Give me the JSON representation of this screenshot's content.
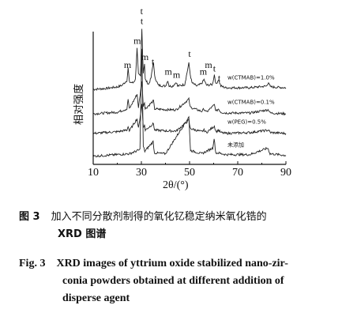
{
  "chart_data": {
    "type": "line",
    "xlabel": "2θ/(°)",
    "ylabel": "相对强度",
    "xlim": [
      10,
      90
    ],
    "xticks": [
      10,
      30,
      50,
      70,
      90
    ],
    "grid": false,
    "series": [
      {
        "name": "w(CTMAB)=1.0%",
        "baseline": 4.6,
        "points": [
          [
            10,
            0
          ],
          [
            15,
            0.05
          ],
          [
            20,
            0.15
          ],
          [
            22,
            0.25
          ],
          [
            24,
            0.55
          ],
          [
            24.5,
            1.3
          ],
          [
            25,
            0.45
          ],
          [
            26.5,
            0.4
          ],
          [
            27.5,
            0.6
          ],
          [
            28.2,
            2.5
          ],
          [
            28.8,
            0.9
          ],
          [
            29.6,
            0.8
          ],
          [
            30.2,
            3.7
          ],
          [
            30.8,
            1.0
          ],
          [
            31.3,
            1.6
          ],
          [
            31.6,
            0.6
          ],
          [
            33,
            0.3
          ],
          [
            34,
            0.7
          ],
          [
            35,
            1.7
          ],
          [
            35.5,
            0.8
          ],
          [
            37,
            0.25
          ],
          [
            40,
            0.2
          ],
          [
            41,
            0.55
          ],
          [
            41.5,
            0.2
          ],
          [
            43,
            0.2
          ],
          [
            44.5,
            0.45
          ],
          [
            45,
            0.2
          ],
          [
            48,
            0.3
          ],
          [
            49.7,
            1.6
          ],
          [
            50.3,
            0.9
          ],
          [
            51,
            0.4
          ],
          [
            53,
            0.2
          ],
          [
            55,
            0.35
          ],
          [
            56,
            0.6
          ],
          [
            57,
            0.25
          ],
          [
            59.5,
            0.3
          ],
          [
            60.3,
            0.9
          ],
          [
            61,
            0.3
          ],
          [
            62,
            0.6
          ],
          [
            63,
            0.2
          ],
          [
            65,
            0.1
          ],
          [
            70,
            0.1
          ],
          [
            75,
            0.1
          ],
          [
            82,
            0.2
          ],
          [
            82.8,
            0.45
          ],
          [
            83.5,
            0.15
          ],
          [
            90,
            0.1
          ]
        ]
      },
      {
        "name": "w(CTMAB)=0.1%",
        "baseline": 3.1,
        "points": [
          [
            10,
            0
          ],
          [
            15,
            0.05
          ],
          [
            20,
            0.1
          ],
          [
            24,
            0.3
          ],
          [
            24.5,
            0.9
          ],
          [
            25,
            0.3
          ],
          [
            28.2,
            1.2
          ],
          [
            28.8,
            0.4
          ],
          [
            30.2,
            2.0
          ],
          [
            30.8,
            0.5
          ],
          [
            31.3,
            0.7
          ],
          [
            31.6,
            0.3
          ],
          [
            35,
            0.8
          ],
          [
            35.5,
            0.3
          ],
          [
            41,
            0.25
          ],
          [
            44.5,
            0.25
          ],
          [
            49.7,
            0.9
          ],
          [
            50.3,
            0.4
          ],
          [
            55,
            0.15
          ],
          [
            56,
            0.3
          ],
          [
            57,
            0.1
          ],
          [
            60.3,
            0.55
          ],
          [
            61,
            0.15
          ],
          [
            62,
            0.3
          ],
          [
            63,
            0.1
          ],
          [
            65,
            0.05
          ],
          [
            75,
            0.05
          ],
          [
            82.8,
            0.25
          ],
          [
            83.5,
            0.05
          ],
          [
            90,
            0
          ]
        ]
      },
      {
        "name": "w(PEG)=0.5%",
        "baseline": 1.9,
        "points": [
          [
            10,
            0
          ],
          [
            15,
            0.05
          ],
          [
            20,
            0.1
          ],
          [
            24,
            0.2
          ],
          [
            24.5,
            0.45
          ],
          [
            25,
            0.15
          ],
          [
            28.2,
            0.9
          ],
          [
            28.8,
            0.3
          ],
          [
            30.2,
            1.8
          ],
          [
            30.8,
            0.4
          ],
          [
            31.3,
            0.5
          ],
          [
            31.6,
            0.2
          ],
          [
            35,
            0.6
          ],
          [
            35.5,
            0.2
          ],
          [
            41,
            0.15
          ],
          [
            44.5,
            0.15
          ],
          [
            49.7,
            0.8
          ],
          [
            50.3,
            0.3
          ],
          [
            55,
            0.1
          ],
          [
            56,
            0.2
          ],
          [
            57,
            0.05
          ],
          [
            60.3,
            0.45
          ],
          [
            61,
            0.1
          ],
          [
            62,
            0.2
          ],
          [
            63,
            0.05
          ],
          [
            65,
            0
          ],
          [
            75,
            0.05
          ],
          [
            82.8,
            0.2
          ],
          [
            83.5,
            0.05
          ],
          [
            90,
            0
          ]
        ]
      },
      {
        "name": "未添加",
        "baseline": 0.5,
        "points": [
          [
            10,
            0
          ],
          [
            15,
            0.05
          ],
          [
            20,
            0.1
          ],
          [
            25,
            0.15
          ],
          [
            29.4,
            0.4
          ],
          [
            30.2,
            6.6
          ],
          [
            30.8,
            0.6
          ],
          [
            31.4,
            0.3
          ],
          [
            34.9,
            0.9
          ],
          [
            35.4,
            0.2
          ],
          [
            40,
            0.15
          ],
          [
            49.7,
            2.4
          ],
          [
            50.4,
            0.35
          ],
          [
            55,
            0.15
          ],
          [
            59.6,
            0.5
          ],
          [
            60.2,
            1.1
          ],
          [
            60.9,
            0.2
          ],
          [
            62,
            0.2
          ],
          [
            65,
            0.1
          ],
          [
            75,
            0.1
          ],
          [
            82.5,
            0.5
          ],
          [
            83.4,
            0.15
          ],
          [
            90,
            0.05
          ]
        ]
      }
    ],
    "peak_labels": [
      {
        "text": "m",
        "x": 24.3,
        "y": 5.9
      },
      {
        "text": "m",
        "x": 28.3,
        "y": 7.4
      },
      {
        "text": "t",
        "x": 30.2,
        "y": 8.6
      },
      {
        "text": "m",
        "x": 31.5,
        "y": 6.4
      },
      {
        "text": "t",
        "x": 34.8,
        "y": 6.1
      },
      {
        "text": "m",
        "x": 41.2,
        "y": 5.5
      },
      {
        "text": "m",
        "x": 44.6,
        "y": 5.3
      },
      {
        "text": "t",
        "x": 50.0,
        "y": 6.6
      },
      {
        "text": "m",
        "x": 55.7,
        "y": 5.5
      },
      {
        "text": "m",
        "x": 57.9,
        "y": 5.9
      },
      {
        "text": "t",
        "x": 60.3,
        "y": 5.7
      },
      {
        "text": "t",
        "x": 62.3,
        "y": 5.1
      }
    ],
    "top_t_label": {
      "text": "t",
      "x": 30.1
    }
  },
  "caption": {
    "cn_label": "图 3",
    "cn_line1": "加入不同分散剂制得的氧化钇稳定纳米氧化锆的",
    "cn_line2": "XRD 图谱",
    "en_label": "Fig. 3",
    "en_line1": "XRD images of yttrium oxide stabilized nano-zir-",
    "en_line2": "conia powders obtained at different addition of",
    "en_line3": "disperse agent"
  }
}
